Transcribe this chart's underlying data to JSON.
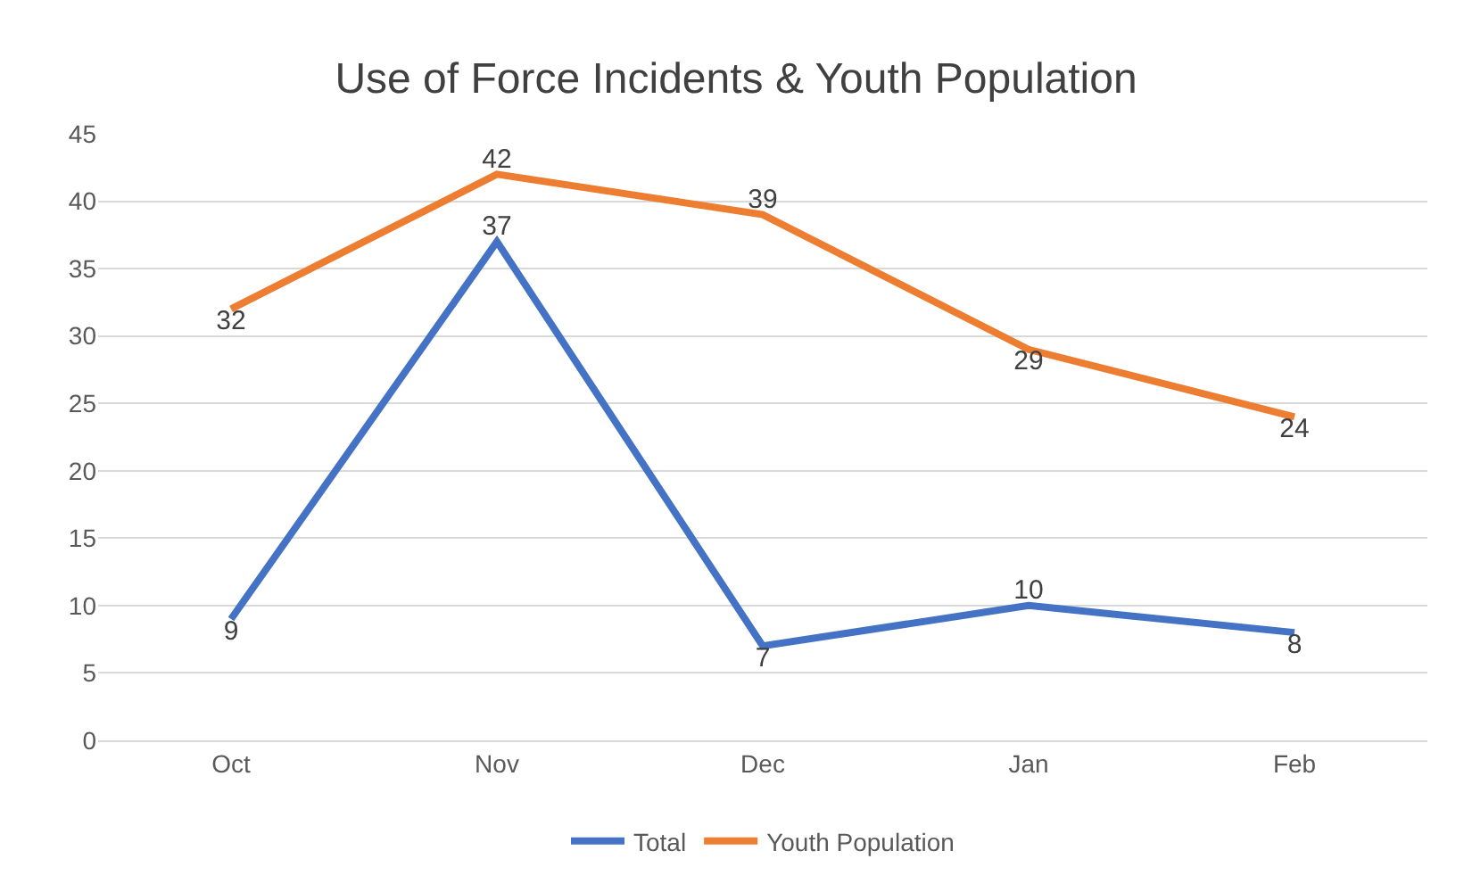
{
  "chart_data": {
    "type": "line",
    "title": "Use of Force Incidents & Youth Population",
    "categories": [
      "Oct",
      "Nov",
      "Dec",
      "Jan",
      "Feb"
    ],
    "series": [
      {
        "name": "Total",
        "color": "#4472c4",
        "values": [
          9,
          37,
          7,
          10,
          8
        ]
      },
      {
        "name": "Youth Population",
        "color": "#ed7d31",
        "values": [
          32,
          42,
          39,
          29,
          24
        ]
      }
    ],
    "ylim": [
      0,
      45
    ],
    "yticks": [
      0,
      5,
      10,
      15,
      20,
      25,
      30,
      35,
      40,
      45
    ],
    "grid": "y",
    "legend": "bottom",
    "data_labels": true,
    "marker": "none",
    "line_style": "solid"
  }
}
